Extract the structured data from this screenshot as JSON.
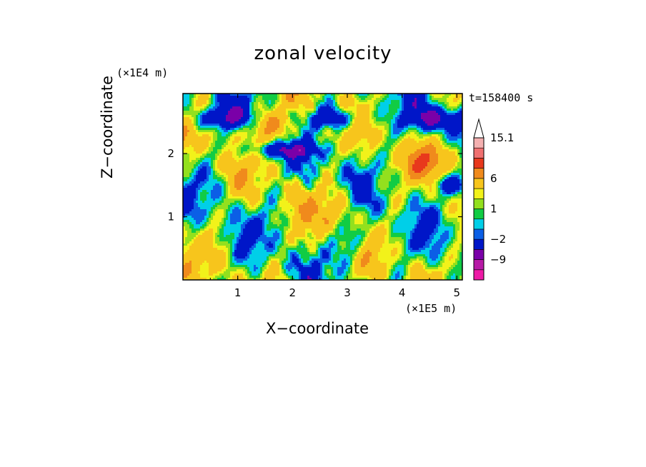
{
  "chart_data": {
    "type": "heatmap",
    "title": "zonal velocity",
    "xlabel": "X−coordinate",
    "ylabel": "Z−coordinate",
    "x_scale_note": "(×1E5 m)",
    "y_scale_note": "(×1E4 m)",
    "time_label": "t=158400 s",
    "xlim": [
      0,
      5.1
    ],
    "ylim": [
      0,
      2.95
    ],
    "x_ticks": [
      1,
      2,
      3,
      4,
      5
    ],
    "y_ticks": [
      1,
      2
    ],
    "colorbar": {
      "levels": [
        -15,
        -12,
        -9,
        -6,
        -2,
        -1,
        0,
        1,
        2,
        3,
        6,
        9,
        12,
        15.1
      ],
      "colors": [
        "#ee1aa6",
        "#b71aa6",
        "#7a00a8",
        "#0016c8",
        "#0b5fe6",
        "#00cfe8",
        "#11cc44",
        "#93e01e",
        "#f2f21a",
        "#f7c51c",
        "#f08a1c",
        "#e8381c",
        "#f07070",
        "#f4b0b0"
      ],
      "tick_labels": [
        "15.1",
        "6",
        "1",
        "−2",
        "−9"
      ],
      "tick_values": [
        15.1,
        6,
        1,
        -2,
        -9
      ],
      "extend": "max"
    }
  }
}
